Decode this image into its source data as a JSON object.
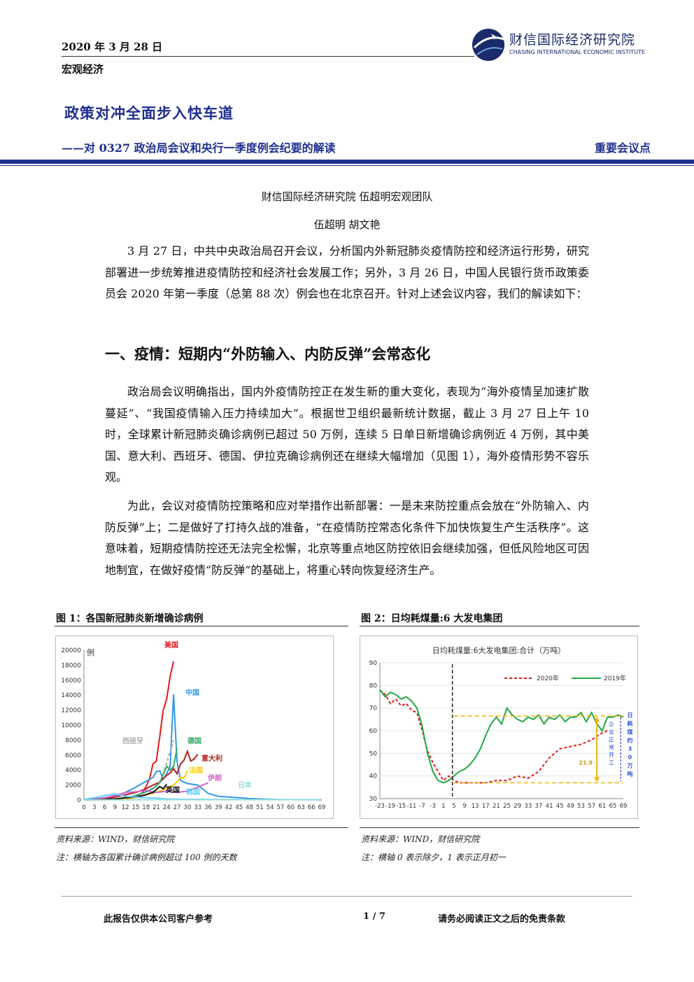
{
  "header": {
    "date": "2020 年 3 月 28 日",
    "category": "宏观经济",
    "logo_name": "财信国际经济研究院",
    "logo_en": "CHASING INTERNATIONAL ECONOMIC INSTITUTE"
  },
  "title": "政策对冲全面步入快车道",
  "subtitle": "——对 0327 政治局会议和央行一季度例会纪要的解读",
  "tag": "重要会议点",
  "team": "财信国际经济研究院  伍超明宏观团队",
  "authors": "伍超明   胡文艳",
  "paragraphs": [
    "3 月 27 日，中共中央政治局召开会议，分析国内外新冠肺炎疫情防控和经济运行形势，研究部署进一步统筹推进疫情防控和经济社会发展工作；另外，3 月 26 日，中国人民银行货币政策委员会 2020 年第一季度（总第 88 次）例会也在北京召开。针对上述会议内容，我们的解读如下：",
    "政治局会议明确指出，国内外疫情防控正在发生新的重大变化，表现为“海外疫情呈加速扩散蔓延”、“我国疫情输入压力持续加大”。根据世卫组织最新统计数据，截止 3 月 27 日上午 10 时，全球累计新冠肺炎确诊病例已超过 50 万例，连续 5 日单日新增确诊病例近 4 万例，其中美国、意大利、西班牙、德国、伊拉克确诊病例还在继续大幅增加（见图 1），海外疫情形势不容乐观。",
    "为此，会议对疫情防控策略和应对举措作出新部署：一是未来防控重点会放在“外防输入、内防反弹”上；二是做好了打持久战的准备，“在疫情防控常态化条件下加快恢复生产生活秩序”。这意味着，短期疫情防控还无法完全松懈，北京等重点地区防控依旧会继续加强，但低风险地区可因地制宜，在做好疫情“防反弹”的基础上，将重心转向恢复经济生产。"
  ],
  "section1": "一、疫情：短期内“外防输入、内防反弹”会常态化",
  "figures": [
    {
      "title": "图 1：各国新冠肺炎新增确诊病例",
      "source": "资料来源：WIND，财信研究院",
      "note": "注：横轴为各国累计确诊病例超过 100 例的天数"
    },
    {
      "title": "图 2：日均耗煤量:6 大发电集团",
      "source": "资料来源：WIND，财信研究院",
      "note": "注：横轴 0 表示除夕，1 表示正月初一"
    }
  ],
  "chart_data": [
    {
      "type": "line",
      "ylabel": "例",
      "ylim": [
        0,
        20000
      ],
      "yticks": [
        "0",
        "2000",
        "4000",
        "6000",
        "8000",
        "10000",
        "12000",
        "14000",
        "16000",
        "18000",
        "20000"
      ],
      "xticks": [
        "0",
        "3",
        "6",
        "9",
        "12",
        "15",
        "18",
        "21",
        "24",
        "27",
        "30",
        "33",
        "36",
        "39",
        "42",
        "45",
        "48",
        "51",
        "54",
        "57",
        "60",
        "63",
        "66",
        "69"
      ],
      "xlim": [
        0,
        69
      ],
      "series": [
        {
          "name": "美国",
          "color": "#e41a1c",
          "x": [
            0,
            3,
            6,
            9,
            12,
            15,
            16,
            17,
            18,
            19,
            20,
            21,
            22,
            23,
            24,
            25,
            26
          ],
          "y": [
            20,
            30,
            50,
            100,
            200,
            400,
            700,
            1000,
            1800,
            2800,
            4800,
            5200,
            8500,
            12000,
            13500,
            16500,
            18500
          ]
        },
        {
          "name": "中国",
          "color": "#3399e6",
          "x": [
            0,
            3,
            6,
            9,
            12,
            15,
            18,
            20,
            21,
            22,
            23,
            24,
            25,
            26,
            27,
            28,
            30,
            33,
            36,
            39,
            42,
            45,
            48,
            51,
            54,
            57,
            60,
            63,
            66,
            69
          ],
          "y": [
            80,
            120,
            300,
            600,
            1000,
            1700,
            2500,
            3000,
            3800,
            3900,
            2800,
            3500,
            4500,
            14100,
            5200,
            2600,
            2200,
            2000,
            900,
            500,
            400,
            300,
            200,
            150,
            100,
            60,
            60,
            50,
            40,
            40
          ]
        },
        {
          "name": "意大利",
          "color": "#b22222",
          "x": [
            0,
            3,
            6,
            9,
            12,
            15,
            18,
            20,
            22,
            24,
            25,
            26,
            27,
            28,
            29,
            30,
            31,
            32,
            33
          ],
          "y": [
            10,
            40,
            150,
            400,
            700,
            1000,
            1500,
            2000,
            2400,
            3300,
            3600,
            4200,
            3500,
            4800,
            5300,
            6500,
            5200,
            5500,
            6100
          ]
        },
        {
          "name": "西班牙",
          "color": "#aaaaaa",
          "dash": true,
          "x": [
            0,
            3,
            6,
            9,
            12,
            15,
            18,
            20,
            21,
            22,
            23,
            24,
            25,
            26
          ],
          "y": [
            10,
            30,
            80,
            150,
            300,
            600,
            1000,
            1600,
            2000,
            2500,
            3400,
            5000,
            6500,
            8000
          ]
        },
        {
          "name": "德国",
          "color": "#33aa66",
          "x": [
            0,
            3,
            6,
            9,
            12,
            15,
            18,
            20,
            22,
            24,
            25,
            26,
            27
          ],
          "y": [
            10,
            30,
            60,
            120,
            250,
            600,
            1100,
            1500,
            2300,
            4500,
            4000,
            4500,
            6900
          ]
        },
        {
          "name": "法国",
          "color": "#ffcc00",
          "x": [
            0,
            3,
            6,
            9,
            12,
            15,
            18,
            20,
            22,
            24,
            25,
            26,
            27,
            28,
            29,
            30
          ],
          "y": [
            10,
            20,
            50,
            80,
            150,
            300,
            700,
            900,
            1200,
            1600,
            1800,
            2000,
            2400,
            3000,
            2900,
            3900
          ]
        },
        {
          "name": "伊朗",
          "color": "#cc66cc",
          "x": [
            0,
            3,
            6,
            9,
            12,
            15,
            18,
            21,
            24,
            27,
            30,
            33,
            36
          ],
          "y": [
            40,
            120,
            300,
            600,
            1000,
            1100,
            1300,
            1000,
            1200,
            1000,
            1200,
            1700,
            2300
          ]
        },
        {
          "name": "英国",
          "color": "#111111",
          "x": [
            0,
            3,
            6,
            9,
            12,
            15,
            18,
            19,
            20,
            21,
            22,
            23,
            24
          ],
          "y": [
            20,
            40,
            80,
            150,
            300,
            400,
            700,
            900,
            1000,
            1400,
            1800,
            1500,
            2100
          ]
        },
        {
          "name": "韩国",
          "color": "#66ccff",
          "x": [
            0,
            3,
            6,
            9,
            12,
            15,
            18,
            21,
            24,
            27,
            30,
            33,
            36,
            39,
            42,
            45
          ],
          "y": [
            100,
            300,
            600,
            800,
            500,
            400,
            300,
            250,
            150,
            100,
            100,
            90,
            80,
            70,
            60,
            100
          ]
        },
        {
          "name": "日本",
          "color": "#99dddd",
          "x": [
            0,
            6,
            12,
            18,
            24,
            30,
            36,
            42,
            48,
            54,
            60,
            66,
            69
          ],
          "y": [
            10,
            20,
            30,
            40,
            60,
            50,
            60,
            40,
            50,
            60,
            50,
            40,
            80
          ]
        }
      ]
    },
    {
      "type": "line",
      "title": "日均耗煤量:6大发电集团:合计（万吨）",
      "ylim": [
        30,
        90
      ],
      "yticks": [
        "30",
        "40",
        "50",
        "60",
        "70",
        "80",
        "90"
      ],
      "xticks": [
        "-23",
        "-19",
        "-15",
        "-11",
        "-7",
        "-3",
        "1",
        "5",
        "9",
        "13",
        "17",
        "21",
        "25",
        "29",
        "33",
        "37",
        "41",
        "45",
        "49",
        "53",
        "57",
        "61",
        "65",
        "69"
      ],
      "xlim": [
        -23,
        69
      ],
      "series": [
        {
          "name": "2020年",
          "color": "#e41a1c",
          "dash": true,
          "x": [
            -23,
            -21,
            -19,
            -17,
            -15,
            -13,
            -11,
            -9,
            -7,
            -5,
            -3,
            -1,
            1,
            3,
            5,
            7,
            9,
            13,
            17,
            21,
            25,
            29,
            33,
            37,
            41,
            45,
            49,
            53,
            57,
            61,
            63
          ],
          "y": [
            78,
            76,
            72,
            74,
            71,
            72,
            69,
            68,
            60,
            51,
            46,
            42,
            38,
            40,
            38,
            37,
            37,
            37,
            37,
            38,
            38,
            40,
            39,
            42,
            48,
            52,
            53,
            54,
            56,
            59,
            60
          ]
        },
        {
          "name": "2019年",
          "color": "#22aa44",
          "x": [
            -23,
            -21,
            -19,
            -17,
            -15,
            -13,
            -11,
            -9,
            -7,
            -5,
            -3,
            -1,
            1,
            3,
            5,
            7,
            9,
            11,
            13,
            15,
            17,
            19,
            21,
            23,
            25,
            27,
            29,
            31,
            33,
            35,
            37,
            39,
            41,
            43,
            45,
            47,
            49,
            51,
            53,
            55,
            57,
            59,
            61,
            63,
            65,
            67,
            69
          ],
          "y": [
            78,
            75,
            77,
            76,
            74,
            75,
            73,
            70,
            62,
            50,
            42,
            38,
            37,
            38,
            40,
            42,
            43,
            45,
            48,
            52,
            58,
            63,
            66,
            63,
            70,
            67,
            65,
            64,
            66,
            65,
            67,
            63,
            66,
            65,
            67,
            64,
            66,
            66,
            68,
            64,
            68,
            63,
            60,
            66,
            66,
            67,
            66
          ]
        }
      ],
      "annotations": {
        "ref_high": 66.5,
        "ref_low": 37,
        "diff_label": "21.9",
        "side_label": "日耗煤约30万吨",
        "side_label2": "企业正常开工"
      }
    }
  ],
  "footer": {
    "left": "此报告仅供本公司客户参考",
    "center": "1 / 7",
    "right": "请务必阅读正文之后的免责条款"
  },
  "colors": {
    "brand": "#1f2f8f"
  }
}
